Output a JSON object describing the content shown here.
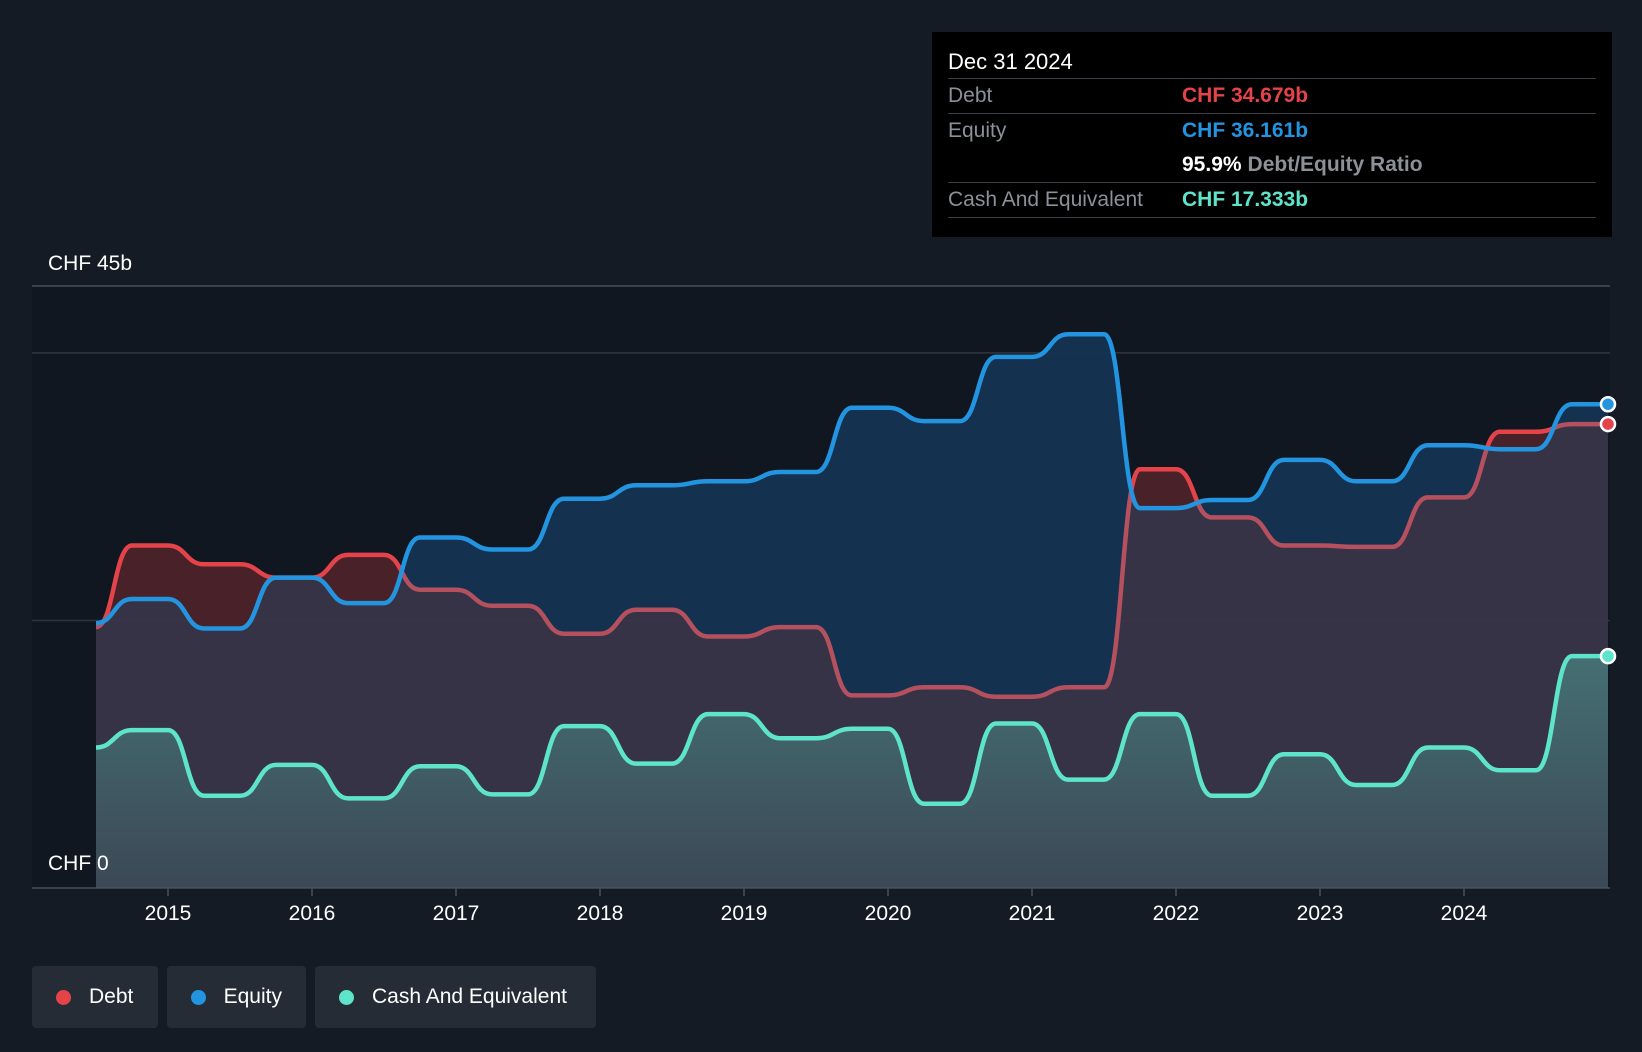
{
  "chart_data": {
    "type": "area",
    "x_start": 2014.5,
    "x_end": 2025.0,
    "ylim": [
      0,
      45
    ],
    "y_top_label": "CHF 45b",
    "y_bottom_label": "CHF 0",
    "x_ticks": [
      "2015",
      "2016",
      "2017",
      "2018",
      "2019",
      "2020",
      "2021",
      "2022",
      "2023",
      "2024"
    ],
    "x_tick_values": [
      2015,
      2016,
      2017,
      2018,
      2019,
      2020,
      2021,
      2022,
      2023,
      2024
    ],
    "gridlines": [
      40,
      20
    ],
    "x": [
      2014.5,
      2014.75,
      2015.0,
      2015.25,
      2015.5,
      2015.75,
      2016.0,
      2016.25,
      2016.5,
      2016.75,
      2017.0,
      2017.25,
      2017.5,
      2017.75,
      2018.0,
      2018.25,
      2018.5,
      2018.75,
      2019.0,
      2019.25,
      2019.5,
      2019.75,
      2020.0,
      2020.25,
      2020.5,
      2020.75,
      2021.0,
      2021.25,
      2021.5,
      2021.75,
      2022.0,
      2022.25,
      2022.5,
      2022.75,
      2023.0,
      2023.25,
      2023.5,
      2023.75,
      2024.0,
      2024.25,
      2024.5,
      2024.75,
      2025.0
    ],
    "series": [
      {
        "name": "Debt",
        "color": "#e5434a",
        "values": [
          19.5,
          25.6,
          25.6,
          24.2,
          24.2,
          23.2,
          23.2,
          24.9,
          24.9,
          22.3,
          22.3,
          21.1,
          21.1,
          19.0,
          19.0,
          20.8,
          20.8,
          18.8,
          18.8,
          19.5,
          19.5,
          14.4,
          14.4,
          15.0,
          15.0,
          14.3,
          14.3,
          15.0,
          15.0,
          31.3,
          31.3,
          27.7,
          27.7,
          25.6,
          25.6,
          25.5,
          25.5,
          29.2,
          29.2,
          34.1,
          34.1,
          34.679,
          34.679
        ]
      },
      {
        "name": "Equity",
        "color": "#2394df",
        "values": [
          19.8,
          21.6,
          21.6,
          19.4,
          19.4,
          23.2,
          23.2,
          21.3,
          21.3,
          26.2,
          26.2,
          25.3,
          25.3,
          29.1,
          29.1,
          30.1,
          30.1,
          30.4,
          30.4,
          31.1,
          31.1,
          35.9,
          35.9,
          34.9,
          34.9,
          39.7,
          39.7,
          41.4,
          41.4,
          28.4,
          28.4,
          29.0,
          29.0,
          32.0,
          32.0,
          30.4,
          30.4,
          33.1,
          33.1,
          32.8,
          32.8,
          36.161,
          36.161
        ]
      },
      {
        "name": "Cash And Equivalent",
        "color": "#5ee4cb",
        "values": [
          10.5,
          11.8,
          11.8,
          6.9,
          6.9,
          9.2,
          9.2,
          6.7,
          6.7,
          9.1,
          9.1,
          7.0,
          7.0,
          12.1,
          12.1,
          9.3,
          9.3,
          13.0,
          13.0,
          11.2,
          11.2,
          11.9,
          11.9,
          6.3,
          6.3,
          12.3,
          12.3,
          8.1,
          8.1,
          13.0,
          13.0,
          6.9,
          6.9,
          10.0,
          10.0,
          7.7,
          7.7,
          10.5,
          10.5,
          8.8,
          8.8,
          17.333,
          17.333
        ]
      }
    ]
  },
  "tooltip": {
    "date": "Dec 31 2024",
    "debt_label": "Debt",
    "debt_value": "CHF 34.679b",
    "equity_label": "Equity",
    "equity_value": "CHF 36.161b",
    "ratio_value": "95.9%",
    "ratio_label": "Debt/Equity Ratio",
    "cash_label": "Cash And Equivalent",
    "cash_value": "CHF 17.333b"
  },
  "legend": {
    "debt": "Debt",
    "equity": "Equity",
    "cash": "Cash And Equivalent"
  },
  "colors": {
    "background": "#151b25",
    "debt": "#e5434a",
    "equity": "#2394df",
    "cash": "#5ee4cb"
  }
}
